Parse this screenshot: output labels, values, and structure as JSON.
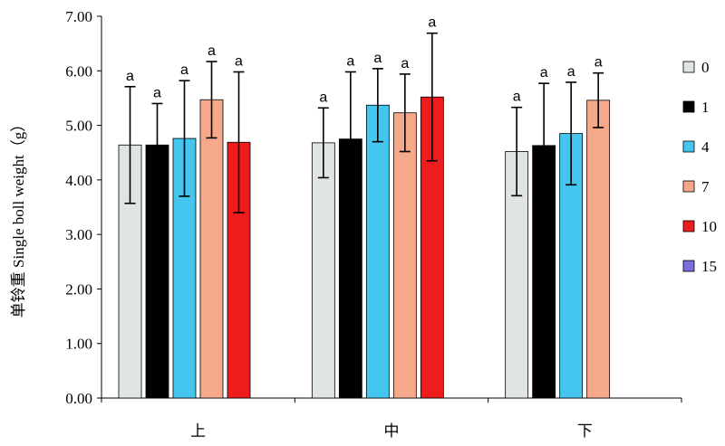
{
  "chart_data": {
    "type": "bar",
    "ylabel": "单铃重 Single boll weight（g）",
    "xlabel": "",
    "ylim": [
      0,
      7
    ],
    "yticks": [
      "0.00",
      "1.00",
      "2.00",
      "3.00",
      "4.00",
      "5.00",
      "6.00",
      "7.00"
    ],
    "categories": [
      "上",
      "中",
      "下"
    ],
    "legend_position": "right",
    "grid": false,
    "series": [
      {
        "name": "0",
        "color": "#dfe5e3",
        "values": [
          4.64,
          4.68,
          4.52
        ],
        "errors": [
          1.07,
          0.64,
          0.81
        ],
        "labels": [
          "a",
          "a",
          "a"
        ]
      },
      {
        "name": "1",
        "color": "#000000",
        "values": [
          4.64,
          4.75,
          4.63
        ],
        "errors": [
          0.76,
          1.23,
          1.14
        ],
        "labels": [
          "a",
          "a",
          "a"
        ]
      },
      {
        "name": "4",
        "color": "#44c6ef",
        "values": [
          4.76,
          5.37,
          4.85
        ],
        "errors": [
          1.06,
          0.67,
          0.94
        ],
        "labels": [
          "a",
          "a",
          "a"
        ]
      },
      {
        "name": "7",
        "color": "#f6a98a",
        "values": [
          5.47,
          5.23,
          5.46
        ],
        "errors": [
          0.7,
          0.71,
          0.5
        ],
        "labels": [
          "a",
          "a",
          "a"
        ]
      },
      {
        "name": "10",
        "color": "#ee1c1c",
        "values": [
          4.69,
          5.52,
          null
        ],
        "errors": [
          1.29,
          1.17,
          null
        ],
        "labels": [
          "a",
          "a",
          ""
        ]
      },
      {
        "name": "15",
        "color": "#7a6fdc",
        "values": [
          null,
          null,
          null
        ],
        "errors": [
          null,
          null,
          null
        ],
        "labels": [
          "",
          "",
          ""
        ]
      }
    ]
  }
}
